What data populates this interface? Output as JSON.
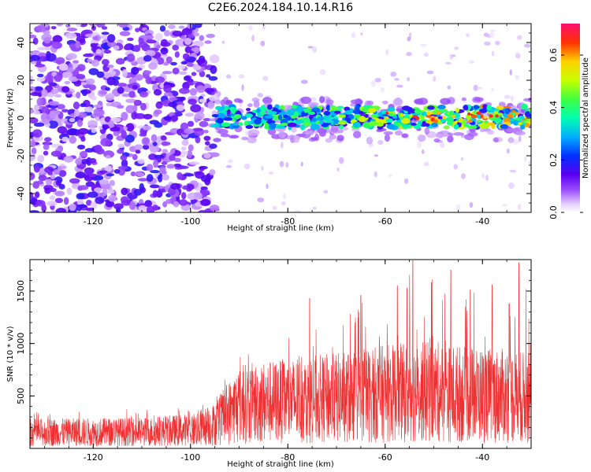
{
  "title": "C2E6.2024.184.10.14.R16",
  "chart_data": [
    {
      "type": "heatmap",
      "xlabel": "Height of straight line (km)",
      "ylabel": "Frequency (Hz)",
      "xlim": [
        -133,
        -30
      ],
      "ylim": [
        -50,
        50
      ],
      "xticks": [
        -120,
        -100,
        -80,
        -60,
        -40
      ],
      "yticks": [
        -40,
        -20,
        0,
        20,
        40
      ],
      "colorbar": {
        "label": "Normalized spectral amplitude",
        "range": [
          0.0,
          0.72
        ],
        "ticks": [
          0.0,
          0.2,
          0.4,
          0.6
        ],
        "tick_labels": [
          "0.0",
          "0.2",
          "0.4",
          "0.6"
        ]
      },
      "regions": [
        {
          "name": "noise",
          "x_range": [
            -133,
            -95
          ],
          "freq_range": [
            -50,
            50
          ],
          "amplitude": 0.08
        },
        {
          "name": "sparse",
          "x_range": [
            -95,
            -30
          ],
          "freq_range": [
            -50,
            50
          ],
          "amplitude": 0.02
        },
        {
          "name": "signal band",
          "x_range": [
            -95,
            -30
          ],
          "freq_range": [
            -6,
            6
          ],
          "amplitude": [
            0.15,
            0.7
          ]
        }
      ]
    },
    {
      "type": "line",
      "xlabel": "Height of straight line (km)",
      "ylabel": "SNR (10 * v/v)",
      "xlim": [
        -133,
        -30
      ],
      "ylim": [
        0,
        1800
      ],
      "xticks": [
        -120,
        -100,
        -80,
        -60,
        -40
      ],
      "yticks": [
        500,
        1000,
        1500
      ],
      "color": "#f03030",
      "envelope": [
        {
          "x": -133,
          "mean": 150,
          "peak": 350
        },
        {
          "x": -110,
          "mean": 155,
          "peak": 380
        },
        {
          "x": -100,
          "mean": 175,
          "peak": 400
        },
        {
          "x": -95,
          "mean": 230,
          "peak": 480
        },
        {
          "x": -90,
          "mean": 420,
          "peak": 950
        },
        {
          "x": -85,
          "mean": 440,
          "peak": 1000
        },
        {
          "x": -80,
          "mean": 450,
          "peak": 1050
        },
        {
          "x": -75,
          "mean": 470,
          "peak": 1150
        },
        {
          "x": -70,
          "mean": 480,
          "peak": 1100
        },
        {
          "x": -65,
          "mean": 500,
          "peak": 1460
        },
        {
          "x": -60,
          "mean": 520,
          "peak": 1300
        },
        {
          "x": -55,
          "mean": 530,
          "peak": 1790
        },
        {
          "x": -50,
          "mean": 540,
          "peak": 1600
        },
        {
          "x": -45,
          "mean": 520,
          "peak": 1550
        },
        {
          "x": -40,
          "mean": 510,
          "peak": 1450
        },
        {
          "x": -35,
          "mean": 500,
          "peak": 1350
        },
        {
          "x": -30,
          "mean": 480,
          "peak": 1780
        }
      ],
      "peaks": [
        {
          "x": -75.5,
          "y": 1430
        },
        {
          "x": -65,
          "y": 1460
        },
        {
          "x": -57.5,
          "y": 1550
        },
        {
          "x": -55.5,
          "y": 1530
        },
        {
          "x": -54.3,
          "y": 1790
        },
        {
          "x": -50.5,
          "y": 1580
        },
        {
          "x": -46.5,
          "y": 1700
        },
        {
          "x": -42.5,
          "y": 1510
        },
        {
          "x": -38,
          "y": 1560
        },
        {
          "x": -34.5,
          "y": 1380
        },
        {
          "x": -32.5,
          "y": 1770
        }
      ]
    }
  ]
}
